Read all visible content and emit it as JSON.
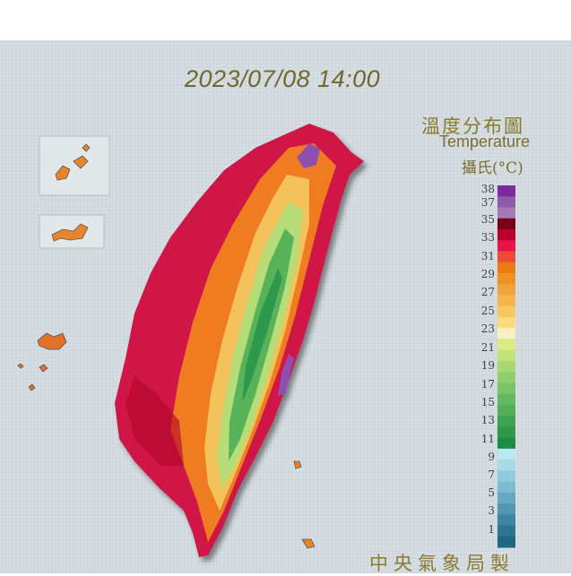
{
  "map": {
    "datetime": "2023/07/08 14:00",
    "title_zh": "溫度分布圖",
    "title_en": "Temperature",
    "unit": "攝氏(°C)",
    "credit": "中央氣象局製"
  },
  "legend": {
    "labels": [
      "38",
      "37",
      "35",
      "33",
      "31",
      "29",
      "27",
      "25",
      "23",
      "21",
      "19",
      "17",
      "15",
      "13",
      "11",
      "9",
      "7",
      "5",
      "3",
      "1"
    ],
    "colors": [
      "#7d2aa0",
      "#8f5aa8",
      "#a57ab7",
      "#7a0016",
      "#b8002a",
      "#e8134a",
      "#ee4b32",
      "#ea7a14",
      "#f0921e",
      "#f2a43a",
      "#f4b54c",
      "#f8c762",
      "#fbdc7c",
      "#f8f0c4",
      "#d9ea86",
      "#c4e27a",
      "#a9d870",
      "#8fce6a",
      "#78c466",
      "#63b95e",
      "#52ae58",
      "#40a352",
      "#2e984b",
      "#1a8c44",
      "#b8e8f2",
      "#a6dbe8",
      "#90cbdc",
      "#7bbccf",
      "#64aac2",
      "#4f98b3",
      "#3c86a4",
      "#2c7593",
      "#1f6884"
    ]
  }
}
